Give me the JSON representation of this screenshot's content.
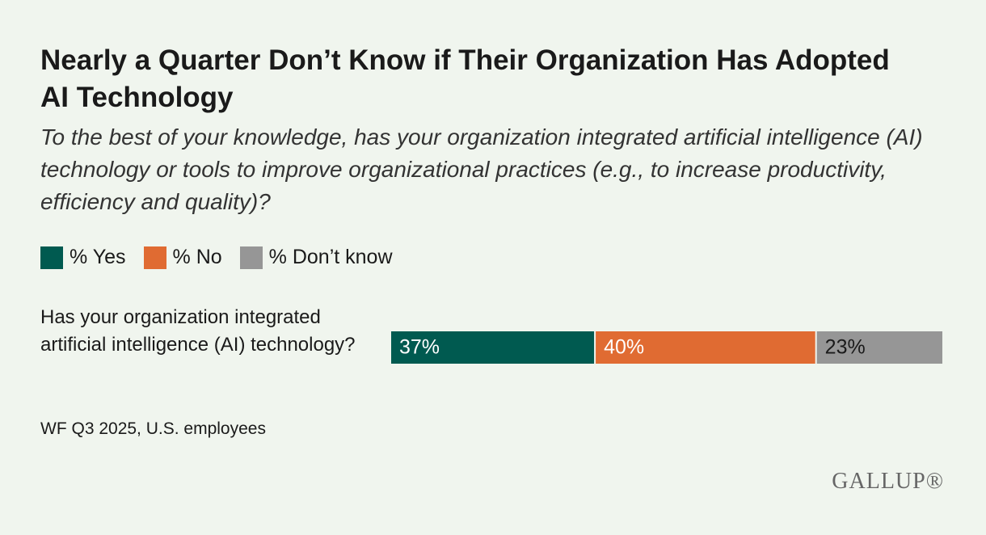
{
  "chart_data": {
    "type": "stacked-bar-horizontal",
    "title": "Nearly a Quarter Don’t Know if Their Organization Has Adopted AI Technology",
    "subtitle": "To the best of your knowledge, has your organization integrated artificial intelligence (AI) technology or tools to improve organizational practices (e.g., to increase productivity, efficiency and quality)?",
    "categories": [
      "Has your organization integrated artificial intelligence (AI) technology?"
    ],
    "series": [
      {
        "name": "% Yes",
        "color": "#005a50",
        "label_color": "#ffffff",
        "values": [
          37
        ],
        "value_labels": [
          "37%"
        ]
      },
      {
        "name": "% No",
        "color": "#e06b32",
        "label_color": "#ffffff",
        "values": [
          40
        ],
        "value_labels": [
          "40%"
        ]
      },
      {
        "name": "% Don’t know",
        "color": "#969696",
        "label_color": "#1a1a1a",
        "values": [
          23
        ],
        "value_labels": [
          "23%"
        ]
      }
    ],
    "legend": "top-left",
    "source": "WF Q3 2025, U.S. employees",
    "logo": "GALLUP®"
  }
}
